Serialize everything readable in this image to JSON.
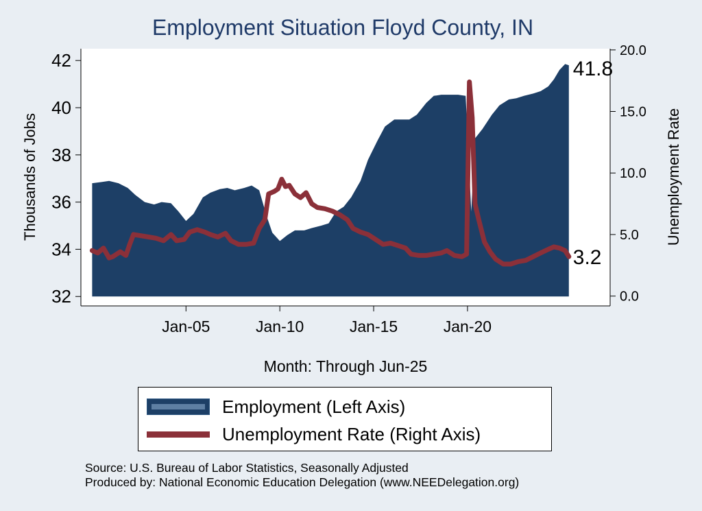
{
  "chart_data": {
    "type": "area",
    "title": "Employment Situation Floyd  County, IN",
    "xlabel": "Month: Through Jun-25",
    "ylabel_left": "Thousands of Jobs",
    "ylabel_right": "Unemployment Rate",
    "x_ticks": [
      "Jan-05",
      "Jan-10",
      "Jan-15",
      "Jan-20"
    ],
    "x_tick_dates": [
      2005.0,
      2010.0,
      2015.0,
      2020.0
    ],
    "x_range": [
      1999.4,
      2027.6
    ],
    "left_axis": {
      "range": [
        31.6,
        42.5
      ],
      "ticks": [
        "32",
        "34",
        "36",
        "38",
        "40",
        "42"
      ]
    },
    "right_axis": {
      "range": [
        -0.8,
        20.1
      ],
      "ticks": [
        "0.0",
        "5.0",
        "10.0",
        "15.0",
        "20.0"
      ]
    },
    "grid": false,
    "legend_position": "bottom",
    "series": [
      {
        "name": "Employment (Left Axis)",
        "axis": "left",
        "kind": "area",
        "color": "#1d3f66",
        "last_label": "41.8",
        "points": [
          [
            2000.0,
            36.8
          ],
          [
            2000.5,
            36.85
          ],
          [
            2000.9,
            36.9
          ],
          [
            2001.4,
            36.8
          ],
          [
            2001.9,
            36.6
          ],
          [
            2002.3,
            36.3
          ],
          [
            2002.8,
            36.0
          ],
          [
            2003.3,
            35.9
          ],
          [
            2003.7,
            36.0
          ],
          [
            2004.2,
            35.95
          ],
          [
            2004.6,
            35.6
          ],
          [
            2005.0,
            35.2
          ],
          [
            2005.4,
            35.5
          ],
          [
            2005.9,
            36.2
          ],
          [
            2006.3,
            36.4
          ],
          [
            2006.8,
            36.55
          ],
          [
            2007.2,
            36.6
          ],
          [
            2007.6,
            36.5
          ],
          [
            2008.1,
            36.6
          ],
          [
            2008.5,
            36.7
          ],
          [
            2008.9,
            36.5
          ],
          [
            2009.3,
            35.4
          ],
          [
            2009.6,
            34.7
          ],
          [
            2010.0,
            34.35
          ],
          [
            2010.4,
            34.6
          ],
          [
            2010.8,
            34.8
          ],
          [
            2011.3,
            34.8
          ],
          [
            2011.7,
            34.9
          ],
          [
            2012.2,
            35.0
          ],
          [
            2012.6,
            35.1
          ],
          [
            2013.0,
            35.6
          ],
          [
            2013.4,
            35.8
          ],
          [
            2013.8,
            36.2
          ],
          [
            2014.3,
            36.9
          ],
          [
            2014.7,
            37.8
          ],
          [
            2015.2,
            38.6
          ],
          [
            2015.6,
            39.2
          ],
          [
            2016.1,
            39.5
          ],
          [
            2016.5,
            39.5
          ],
          [
            2016.9,
            39.5
          ],
          [
            2017.3,
            39.7
          ],
          [
            2017.8,
            40.2
          ],
          [
            2018.2,
            40.5
          ],
          [
            2018.6,
            40.55
          ],
          [
            2019.0,
            40.55
          ],
          [
            2019.5,
            40.55
          ],
          [
            2019.9,
            40.5
          ],
          [
            2020.2,
            35.6
          ],
          [
            2020.4,
            38.7
          ],
          [
            2020.8,
            39.1
          ],
          [
            2021.3,
            39.7
          ],
          [
            2021.7,
            40.1
          ],
          [
            2022.2,
            40.35
          ],
          [
            2022.6,
            40.4
          ],
          [
            2023.0,
            40.5
          ],
          [
            2023.5,
            40.6
          ],
          [
            2023.9,
            40.7
          ],
          [
            2024.3,
            40.9
          ],
          [
            2024.6,
            41.2
          ],
          [
            2024.9,
            41.6
          ],
          [
            2025.2,
            41.85
          ],
          [
            2025.4,
            41.8
          ]
        ]
      },
      {
        "name": "Unemployment Rate (Right Axis)",
        "axis": "right",
        "kind": "line",
        "color": "#8b3039",
        "last_label": "3.2",
        "points": [
          [
            2000.0,
            3.7
          ],
          [
            2000.3,
            3.5
          ],
          [
            2000.6,
            3.9
          ],
          [
            2000.9,
            3.1
          ],
          [
            2001.1,
            3.2
          ],
          [
            2001.5,
            3.6
          ],
          [
            2001.8,
            3.3
          ],
          [
            2002.0,
            4.2
          ],
          [
            2002.2,
            5.0
          ],
          [
            2002.6,
            4.9
          ],
          [
            2003.0,
            4.8
          ],
          [
            2003.4,
            4.7
          ],
          [
            2003.8,
            4.5
          ],
          [
            2004.2,
            5.0
          ],
          [
            2004.5,
            4.5
          ],
          [
            2004.9,
            4.6
          ],
          [
            2005.2,
            5.2
          ],
          [
            2005.6,
            5.4
          ],
          [
            2006.0,
            5.2
          ],
          [
            2006.3,
            5.0
          ],
          [
            2006.7,
            4.8
          ],
          [
            2007.1,
            5.1
          ],
          [
            2007.4,
            4.5
          ],
          [
            2007.8,
            4.2
          ],
          [
            2008.2,
            4.2
          ],
          [
            2008.6,
            4.3
          ],
          [
            2008.9,
            5.5
          ],
          [
            2009.2,
            6.2
          ],
          [
            2009.4,
            8.3
          ],
          [
            2009.7,
            8.5
          ],
          [
            2009.9,
            8.7
          ],
          [
            2010.1,
            9.5
          ],
          [
            2010.3,
            8.9
          ],
          [
            2010.5,
            9.0
          ],
          [
            2010.8,
            8.3
          ],
          [
            2011.1,
            8.0
          ],
          [
            2011.4,
            8.4
          ],
          [
            2011.7,
            7.5
          ],
          [
            2012.0,
            7.2
          ],
          [
            2012.4,
            7.1
          ],
          [
            2012.8,
            6.9
          ],
          [
            2013.2,
            6.6
          ],
          [
            2013.6,
            6.2
          ],
          [
            2013.9,
            5.5
          ],
          [
            2014.3,
            5.2
          ],
          [
            2014.7,
            5.0
          ],
          [
            2015.1,
            4.6
          ],
          [
            2015.5,
            4.2
          ],
          [
            2015.9,
            4.3
          ],
          [
            2016.3,
            4.1
          ],
          [
            2016.7,
            3.9
          ],
          [
            2017.0,
            3.4
          ],
          [
            2017.4,
            3.3
          ],
          [
            2017.8,
            3.3
          ],
          [
            2018.2,
            3.4
          ],
          [
            2018.6,
            3.5
          ],
          [
            2018.9,
            3.7
          ],
          [
            2019.3,
            3.3
          ],
          [
            2019.7,
            3.2
          ],
          [
            2019.95,
            3.4
          ],
          [
            2020.1,
            17.4
          ],
          [
            2020.25,
            14.5
          ],
          [
            2020.4,
            7.5
          ],
          [
            2020.6,
            6.2
          ],
          [
            2020.9,
            4.4
          ],
          [
            2021.2,
            3.6
          ],
          [
            2021.5,
            3.0
          ],
          [
            2021.9,
            2.6
          ],
          [
            2022.3,
            2.6
          ],
          [
            2022.7,
            2.8
          ],
          [
            2023.1,
            2.9
          ],
          [
            2023.5,
            3.2
          ],
          [
            2023.9,
            3.5
          ],
          [
            2024.3,
            3.8
          ],
          [
            2024.6,
            4.0
          ],
          [
            2024.9,
            3.9
          ],
          [
            2025.2,
            3.7
          ],
          [
            2025.4,
            3.2
          ]
        ]
      }
    ]
  },
  "source": {
    "line1": "Source: U.S. Bureau of Labor Statistics, Seasonally Adjusted",
    "line2": "Produced by: National Economic Education Delegation (www.NEEDelegation.org)"
  }
}
